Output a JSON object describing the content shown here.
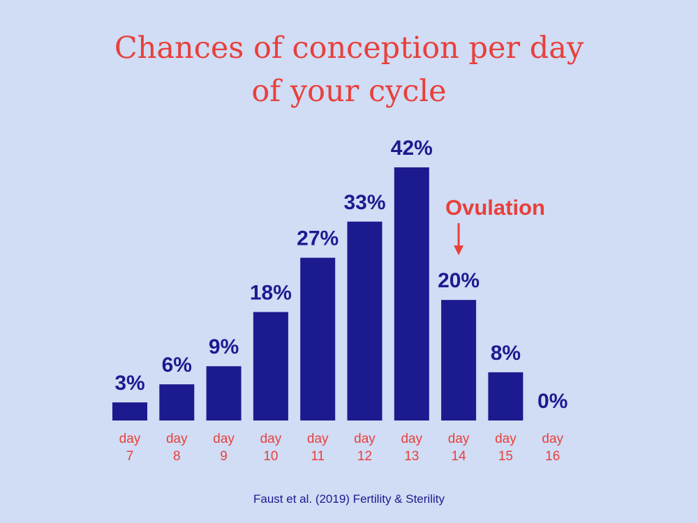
{
  "colors": {
    "background": "#d1dcf5",
    "bar": "#1c1a8f",
    "accent": "#e8403a"
  },
  "chart_data": {
    "type": "bar",
    "title_lines": [
      "Chances of conception per day",
      "of your cycle"
    ],
    "categories": [
      [
        "day",
        "7"
      ],
      [
        "day",
        "8"
      ],
      [
        "day",
        "9"
      ],
      [
        "day",
        "10"
      ],
      [
        "day",
        "11"
      ],
      [
        "day",
        "12"
      ],
      [
        "day",
        "13"
      ],
      [
        "day",
        "14"
      ],
      [
        "day",
        "15"
      ],
      [
        "day",
        "16"
      ]
    ],
    "values": [
      3,
      6,
      9,
      18,
      27,
      33,
      42,
      20,
      8,
      0
    ],
    "value_labels": [
      "3%",
      "6%",
      "9%",
      "18%",
      "27%",
      "33%",
      "42%",
      "20%",
      "8%",
      "0%"
    ],
    "unit": "%",
    "ylim": [
      0,
      42
    ],
    "grid": false,
    "annotation": {
      "text": "Ovulation",
      "category": "day 14",
      "arrow": "down"
    }
  },
  "source": "Faust et al. (2019) Fertility & Sterility"
}
